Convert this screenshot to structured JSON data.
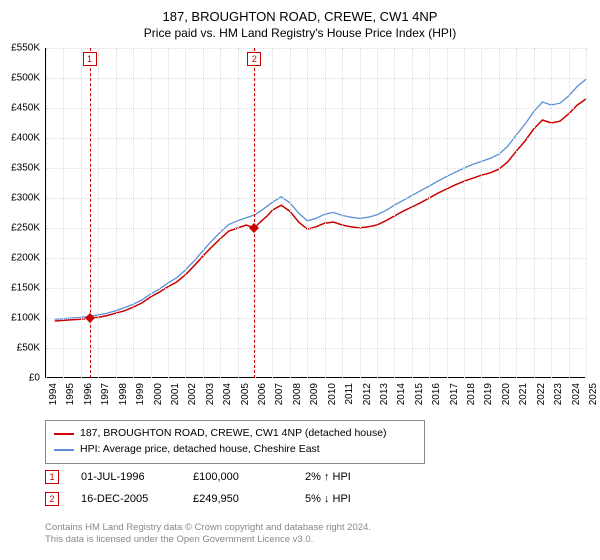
{
  "title": "187, BROUGHTON ROAD, CREWE, CW1 4NP",
  "subtitle": "Price paid vs. HM Land Registry's House Price Index (HPI)",
  "chart": {
    "type": "line",
    "xlim": [
      1994,
      2025
    ],
    "ylim": [
      0,
      550000
    ],
    "ytick_step": 50000,
    "yticks": [
      {
        "v": 0,
        "label": "£0"
      },
      {
        "v": 50000,
        "label": "£50K"
      },
      {
        "v": 100000,
        "label": "£100K"
      },
      {
        "v": 150000,
        "label": "£150K"
      },
      {
        "v": 200000,
        "label": "£200K"
      },
      {
        "v": 250000,
        "label": "£250K"
      },
      {
        "v": 300000,
        "label": "£300K"
      },
      {
        "v": 350000,
        "label": "£350K"
      },
      {
        "v": 400000,
        "label": "£400K"
      },
      {
        "v": 450000,
        "label": "£450K"
      },
      {
        "v": 500000,
        "label": "£500K"
      },
      {
        "v": 550000,
        "label": "£550K"
      }
    ],
    "xticks": [
      1994,
      1995,
      1996,
      1997,
      1998,
      1999,
      2000,
      2001,
      2002,
      2003,
      2004,
      2005,
      2006,
      2007,
      2008,
      2009,
      2010,
      2011,
      2012,
      2013,
      2014,
      2015,
      2016,
      2017,
      2018,
      2019,
      2020,
      2021,
      2022,
      2023,
      2024,
      2025
    ],
    "background_color": "#ffffff",
    "grid_color": "#dddddd",
    "axis_color": "#000000",
    "series": [
      {
        "name": "price_paid",
        "label": "187, BROUGHTON ROAD, CREWE, CW1 4NP (detached house)",
        "color": "#cc0000",
        "width": 1.5,
        "data": [
          [
            1994.5,
            95000
          ],
          [
            1995,
            96000
          ],
          [
            1995.5,
            97000
          ],
          [
            1996,
            98000
          ],
          [
            1996.5,
            100000
          ],
          [
            1997,
            101000
          ],
          [
            1997.5,
            104000
          ],
          [
            1998,
            108000
          ],
          [
            1998.5,
            112000
          ],
          [
            1999,
            118000
          ],
          [
            1999.5,
            125000
          ],
          [
            2000,
            135000
          ],
          [
            2000.5,
            143000
          ],
          [
            2001,
            152000
          ],
          [
            2001.5,
            160000
          ],
          [
            2002,
            172000
          ],
          [
            2002.5,
            187000
          ],
          [
            2003,
            203000
          ],
          [
            2003.5,
            218000
          ],
          [
            2004,
            232000
          ],
          [
            2004.5,
            245000
          ],
          [
            2005,
            250000
          ],
          [
            2005.5,
            255000
          ],
          [
            2005.96,
            249950
          ],
          [
            2006.3,
            260000
          ],
          [
            2006.7,
            270000
          ],
          [
            2007,
            280000
          ],
          [
            2007.5,
            288000
          ],
          [
            2008,
            278000
          ],
          [
            2008.5,
            260000
          ],
          [
            2009,
            248000
          ],
          [
            2009.5,
            252000
          ],
          [
            2010,
            258000
          ],
          [
            2010.5,
            260000
          ],
          [
            2011,
            255000
          ],
          [
            2011.5,
            252000
          ],
          [
            2012,
            250000
          ],
          [
            2012.5,
            252000
          ],
          [
            2013,
            255000
          ],
          [
            2013.5,
            262000
          ],
          [
            2014,
            270000
          ],
          [
            2014.5,
            278000
          ],
          [
            2015,
            285000
          ],
          [
            2015.5,
            292000
          ],
          [
            2016,
            300000
          ],
          [
            2016.5,
            308000
          ],
          [
            2017,
            315000
          ],
          [
            2017.5,
            322000
          ],
          [
            2018,
            328000
          ],
          [
            2018.5,
            333000
          ],
          [
            2019,
            338000
          ],
          [
            2019.5,
            342000
          ],
          [
            2020,
            348000
          ],
          [
            2020.5,
            360000
          ],
          [
            2021,
            378000
          ],
          [
            2021.5,
            395000
          ],
          [
            2022,
            415000
          ],
          [
            2022.5,
            430000
          ],
          [
            2023,
            425000
          ],
          [
            2023.5,
            428000
          ],
          [
            2024,
            440000
          ],
          [
            2024.5,
            455000
          ],
          [
            2025,
            465000
          ]
        ]
      },
      {
        "name": "hpi",
        "label": "HPI: Average price, detached house, Cheshire East",
        "color": "#5b8fd6",
        "width": 1.3,
        "data": [
          [
            1994.5,
            98000
          ],
          [
            1995,
            99000
          ],
          [
            1995.5,
            100000
          ],
          [
            1996,
            101000
          ],
          [
            1996.5,
            103000
          ],
          [
            1997,
            105000
          ],
          [
            1997.5,
            108000
          ],
          [
            1998,
            112000
          ],
          [
            1998.5,
            117000
          ],
          [
            1999,
            123000
          ],
          [
            1999.5,
            130000
          ],
          [
            2000,
            140000
          ],
          [
            2000.5,
            148000
          ],
          [
            2001,
            158000
          ],
          [
            2001.5,
            167000
          ],
          [
            2002,
            180000
          ],
          [
            2002.5,
            195000
          ],
          [
            2003,
            212000
          ],
          [
            2003.5,
            228000
          ],
          [
            2004,
            243000
          ],
          [
            2004.5,
            256000
          ],
          [
            2005,
            262000
          ],
          [
            2005.5,
            267000
          ],
          [
            2006,
            272000
          ],
          [
            2006.5,
            282000
          ],
          [
            2007,
            293000
          ],
          [
            2007.5,
            302000
          ],
          [
            2008,
            292000
          ],
          [
            2008.5,
            275000
          ],
          [
            2009,
            262000
          ],
          [
            2009.5,
            266000
          ],
          [
            2010,
            273000
          ],
          [
            2010.5,
            276000
          ],
          [
            2011,
            271000
          ],
          [
            2011.5,
            268000
          ],
          [
            2012,
            266000
          ],
          [
            2012.5,
            268000
          ],
          [
            2013,
            272000
          ],
          [
            2013.5,
            279000
          ],
          [
            2014,
            288000
          ],
          [
            2014.5,
            296000
          ],
          [
            2015,
            304000
          ],
          [
            2015.5,
            312000
          ],
          [
            2016,
            320000
          ],
          [
            2016.5,
            328000
          ],
          [
            2017,
            336000
          ],
          [
            2017.5,
            343000
          ],
          [
            2018,
            350000
          ],
          [
            2018.5,
            356000
          ],
          [
            2019,
            361000
          ],
          [
            2019.5,
            366000
          ],
          [
            2020,
            373000
          ],
          [
            2020.5,
            386000
          ],
          [
            2021,
            405000
          ],
          [
            2021.5,
            423000
          ],
          [
            2022,
            444000
          ],
          [
            2022.5,
            460000
          ],
          [
            2023,
            455000
          ],
          [
            2023.5,
            458000
          ],
          [
            2024,
            470000
          ],
          [
            2024.5,
            486000
          ],
          [
            2025,
            498000
          ]
        ]
      }
    ],
    "markers": [
      {
        "id": "1",
        "x": 1996.5,
        "y": 100000,
        "color": "#cc0000"
      },
      {
        "id": "2",
        "x": 2005.96,
        "y": 249950,
        "color": "#cc0000"
      }
    ]
  },
  "legend": {
    "border_color": "#888888"
  },
  "transactions": [
    {
      "id": "1",
      "date": "01-JUL-1996",
      "price": "£100,000",
      "delta": "2% ↑ HPI",
      "color": "#cc0000"
    },
    {
      "id": "2",
      "date": "16-DEC-2005",
      "price": "£249,950",
      "delta": "5% ↓ HPI",
      "color": "#cc0000"
    }
  ],
  "footnote_line1": "Contains HM Land Registry data © Crown copyright and database right 2024.",
  "footnote_line2": "This data is licensed under the Open Government Licence v3.0."
}
